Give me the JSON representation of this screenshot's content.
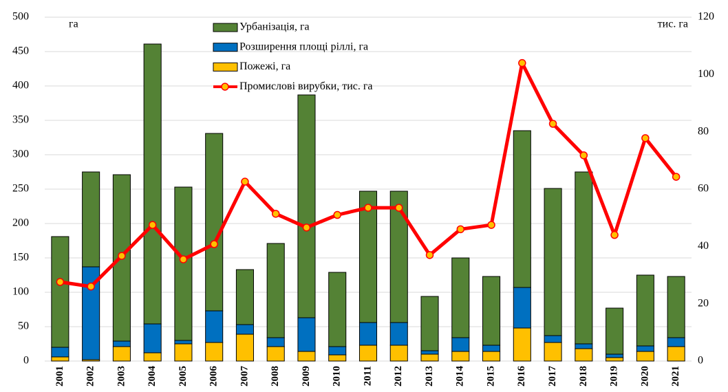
{
  "chart_data": {
    "type": "bar",
    "stacked": true,
    "y_label": "га",
    "y2_label": "тис. га",
    "categories": [
      "2001",
      "2002",
      "2003",
      "2004",
      "2005",
      "2006",
      "2007",
      "2008",
      "2009",
      "2010",
      "2011",
      "2012",
      "2013",
      "2014",
      "2015",
      "2016",
      "2017",
      "2018",
      "2019",
      "2020",
      "2021"
    ],
    "series": [
      {
        "name": "Урбанізація, га",
        "color": "#548235",
        "values": [
          161,
          138,
          242,
          407,
          223,
          258,
          80,
          137,
          324,
          108,
          191,
          191,
          79,
          116,
          100,
          228,
          214,
          250,
          67,
          103,
          89
        ]
      },
      {
        "name": "Розширення площі ріллі, га",
        "color": "#0070c0",
        "values": [
          14,
          135,
          8,
          42,
          5,
          46,
          14,
          13,
          49,
          12,
          33,
          33,
          5,
          20,
          9,
          59,
          10,
          7,
          5,
          8,
          13
        ]
      },
      {
        "name": "Пожежі, га",
        "color": "#ffc000",
        "values": [
          6,
          2,
          21,
          12,
          25,
          27,
          39,
          21,
          14,
          9,
          23,
          23,
          10,
          14,
          14,
          48,
          27,
          18,
          5,
          14,
          21
        ]
      },
      {
        "name": "Промислові вирубки, тис. га",
        "type": "line",
        "axis": "y2",
        "color": "#ff0000",
        "marker_color": "#ffc000",
        "values": [
          27.6,
          26,
          36.7,
          47.5,
          35.5,
          40.8,
          62.6,
          51.4,
          46.6,
          51,
          53.5,
          53.5,
          37,
          46,
          47.5,
          104,
          82.8,
          71.8,
          44,
          77.8,
          64.3
        ]
      }
    ],
    "ylim": [
      0,
      500
    ],
    "yticks": [
      0,
      50,
      100,
      150,
      200,
      250,
      300,
      350,
      400,
      450,
      500
    ],
    "y2lim": [
      0,
      120
    ],
    "y2ticks": [
      0,
      20,
      40,
      60,
      80,
      100,
      120
    ],
    "grid": true
  }
}
